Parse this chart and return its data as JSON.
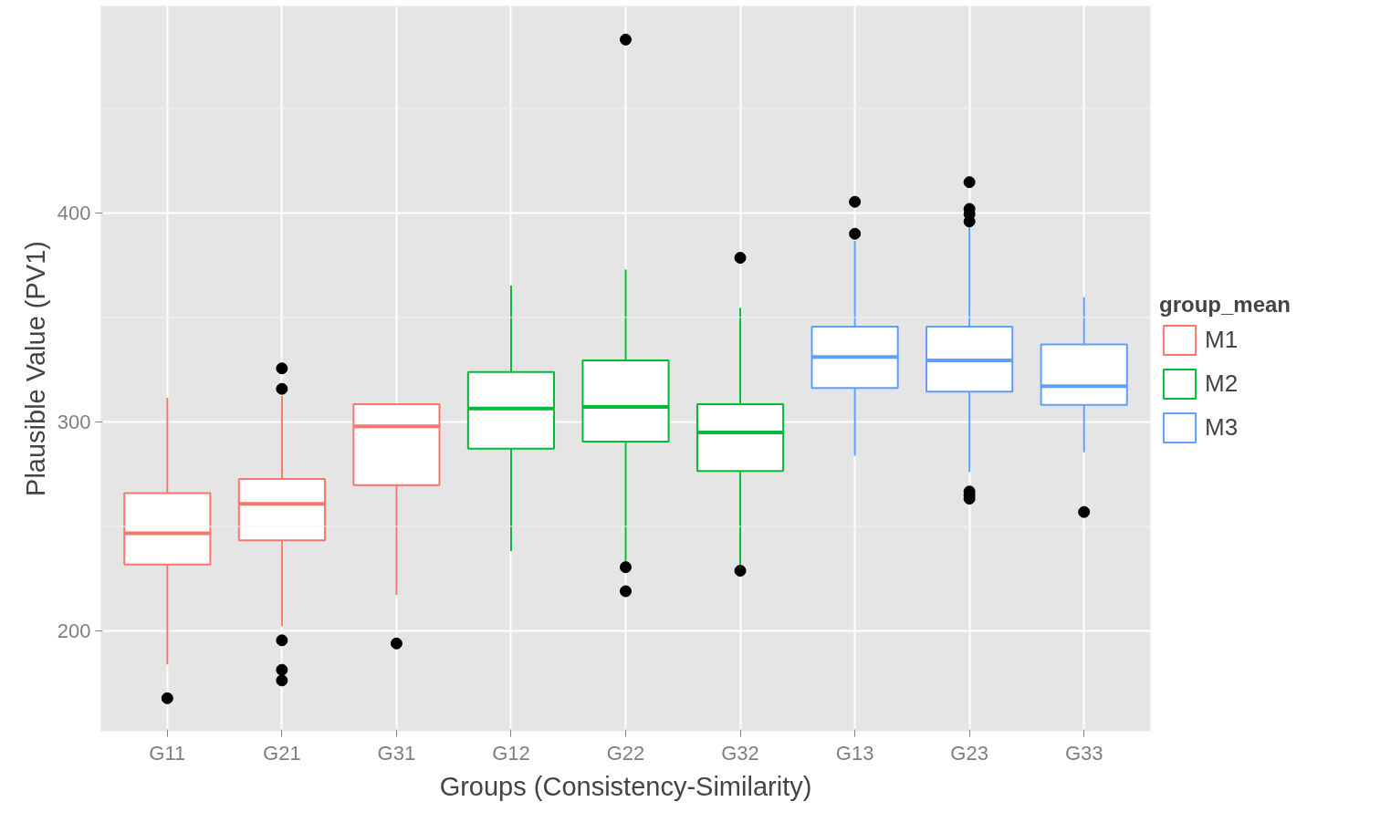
{
  "chart_data": {
    "type": "box",
    "xlabel": "Groups (Consistency-Similarity)",
    "ylabel": "Plausible Value (PV1)",
    "legend_title": "group_mean",
    "categories": [
      "G11",
      "G21",
      "G31",
      "G12",
      "G22",
      "G32",
      "G13",
      "G23",
      "G33"
    ],
    "ylim": [
      152,
      499
    ],
    "yticks": [
      200,
      300,
      400
    ],
    "grid": true,
    "legend": "right",
    "series": [
      {
        "name": "M1",
        "color": "#f8766d",
        "boxes": [
          {
            "low": 184,
            "q1": 231.8,
            "median": 246.7,
            "q3": 265.9,
            "high": 311.5,
            "outliers": [
              167.8
            ]
          },
          {
            "low": 202.3,
            "q1": 243.3,
            "median": 260.8,
            "q3": 272.7,
            "high": 312.4,
            "outliers": [
              325.6,
              315.8,
              195.5,
              181.4,
              176.3
            ]
          },
          {
            "low": 217.3,
            "q1": 269.7,
            "median": 297.9,
            "q3": 308.5,
            "high": 308.5,
            "outliers": [
              194
            ]
          },
          null,
          null,
          null,
          null,
          null,
          null
        ]
      },
      {
        "name": "M2",
        "color": "#00ba38",
        "boxes": [
          null,
          null,
          null,
          {
            "low": 238.2,
            "q1": 287.2,
            "median": 306.4,
            "q3": 323.9,
            "high": 365.2
          },
          {
            "low": 233,
            "q1": 290.6,
            "median": 307.2,
            "q3": 329.4,
            "high": 372.9,
            "outliers": [
              482.9,
              230.5,
              219
            ]
          },
          {
            "low": 231.3,
            "q1": 276.5,
            "median": 294.9,
            "q3": 308.5,
            "high": 354.6,
            "outliers": [
              378.5,
              228.8
            ]
          },
          null,
          null,
          null
        ]
      },
      {
        "name": "M3",
        "color": "#619cff",
        "boxes": [
          null,
          null,
          null,
          null,
          null,
          null,
          {
            "low": 283.8,
            "q1": 316.2,
            "median": 331.1,
            "q3": 345.6,
            "high": 386.6,
            "outliers": [
              405.3,
              390
            ]
          },
          {
            "low": 276.1,
            "q1": 314.5,
            "median": 329.4,
            "q3": 345.6,
            "high": 394.2,
            "outliers": [
              414.7,
              401.9,
              399.4,
              395.9,
              266.7,
              265,
              263.3
            ]
          },
          {
            "low": 285.5,
            "q1": 308.1,
            "median": 317.1,
            "q3": 337.1,
            "high": 359.7,
            "outliers": [
              256.9
            ]
          }
        ]
      }
    ]
  }
}
